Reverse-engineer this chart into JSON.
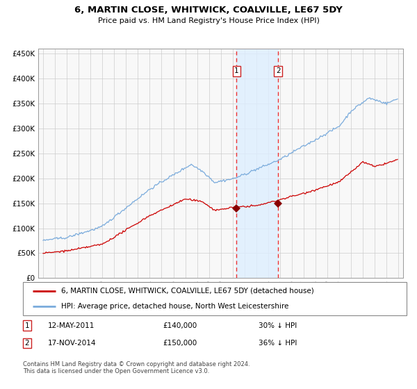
{
  "title": "6, MARTIN CLOSE, WHITWICK, COALVILLE, LE67 5DY",
  "subtitle": "Price paid vs. HM Land Registry's House Price Index (HPI)",
  "legend_line1": "6, MARTIN CLOSE, WHITWICK, COALVILLE, LE67 5DY (detached house)",
  "legend_line2": "HPI: Average price, detached house, North West Leicestershire",
  "transaction1_date": "12-MAY-2011",
  "transaction1_price": 140000,
  "transaction1_hpi": "30% ↓ HPI",
  "transaction2_date": "17-NOV-2014",
  "transaction2_price": 150000,
  "transaction2_hpi": "36% ↓ HPI",
  "footnote": "Contains HM Land Registry data © Crown copyright and database right 2024.\nThis data is licensed under the Open Government Licence v3.0.",
  "hpi_color": "#7aabdc",
  "price_color": "#cc0000",
  "marker_color": "#880000",
  "vline_color": "#ee3333",
  "shade_color": "#ddeeff",
  "bg_color": "#f8f8f8",
  "ylim": [
    0,
    460000
  ],
  "ytick_vals": [
    0,
    50000,
    100000,
    150000,
    200000,
    250000,
    300000,
    350000,
    400000,
    450000
  ],
  "year_start": 1995,
  "year_end": 2025
}
